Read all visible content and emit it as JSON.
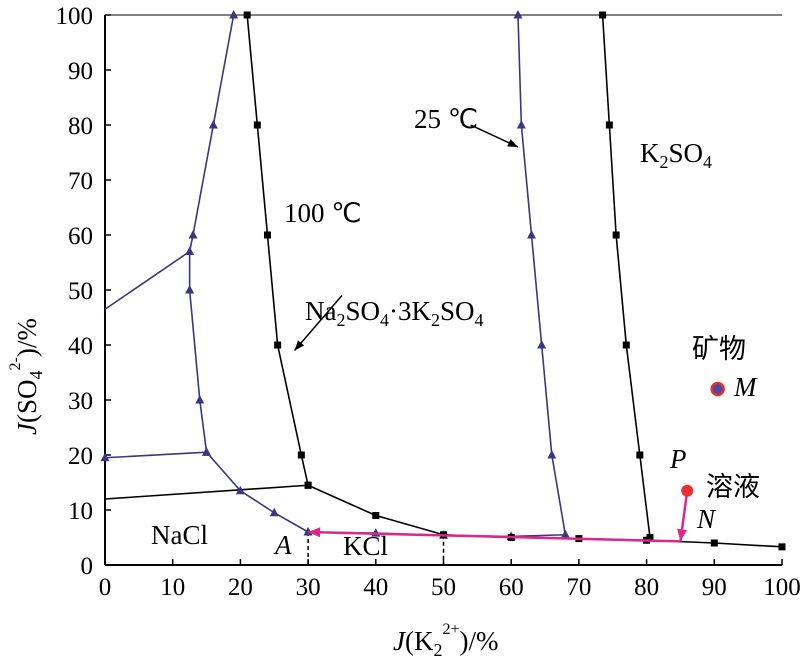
{
  "chart_data": {
    "type": "line",
    "title": "",
    "xlabel": {
      "J": "J",
      "open": "(K",
      "sub": "2",
      "sup": "2+",
      "close": ")/%"
    },
    "ylabel": {
      "J": "J",
      "open": "(SO",
      "sub": "4",
      "sup": "2-",
      "close": ")/%"
    },
    "xlim": [
      0,
      100
    ],
    "ylim": [
      0,
      100
    ],
    "x_ticks": [
      0,
      10,
      20,
      30,
      40,
      50,
      60,
      70,
      80,
      90,
      100
    ],
    "y_ticks": [
      0,
      10,
      20,
      30,
      40,
      50,
      60,
      70,
      80,
      90,
      100
    ],
    "colors": {
      "t25": "#3a3680",
      "t100": "#000000",
      "path": "#e0268b",
      "point": "#e8312c",
      "mineral_fill": "#4b4aa0"
    },
    "series": [
      {
        "id": "t25_left_boundary",
        "marker": "triangle",
        "points": [
          [
            19,
            100
          ],
          [
            16,
            80
          ],
          [
            13,
            60
          ],
          [
            12.5,
            57
          ],
          [
            12.5,
            50
          ],
          [
            14,
            30
          ],
          [
            15,
            20.5
          ]
        ]
      },
      {
        "id": "t25_top_branch",
        "marker": "none",
        "points": [
          [
            0,
            46.5
          ],
          [
            12.5,
            57
          ]
        ]
      },
      {
        "id": "t25_bottom_branch",
        "marker": "triangle",
        "points": [
          [
            0,
            19.5
          ],
          [
            15,
            20.5
          ],
          [
            20,
            13.5
          ],
          [
            25,
            9.5
          ],
          [
            30,
            6
          ]
        ]
      },
      {
        "id": "t25_right_boundary",
        "marker": "triangle",
        "points": [
          [
            61,
            100
          ],
          [
            61.5,
            80
          ],
          [
            63,
            60
          ],
          [
            64.5,
            40
          ],
          [
            66,
            20
          ],
          [
            68,
            5.5
          ]
        ]
      },
      {
        "id": "t25_base",
        "marker": "triangle",
        "points": [
          [
            30,
            6
          ],
          [
            40,
            5.8
          ],
          [
            50,
            5.4
          ],
          [
            60,
            5.2
          ],
          [
            68,
            5.5
          ]
        ]
      },
      {
        "id": "t100_left_boundary",
        "marker": "square",
        "points": [
          [
            21,
            100
          ],
          [
            22.5,
            80
          ],
          [
            24,
            60
          ],
          [
            25.5,
            40
          ],
          [
            29,
            20
          ],
          [
            30,
            14.5
          ]
        ]
      },
      {
        "id": "t100_low_branch",
        "marker": "none",
        "points": [
          [
            0,
            12
          ],
          [
            30,
            14.5
          ]
        ]
      },
      {
        "id": "t100_base",
        "marker": "square",
        "points": [
          [
            30,
            14.5
          ],
          [
            40,
            9
          ],
          [
            50,
            5.5
          ],
          [
            60,
            5
          ],
          [
            70,
            4.8
          ],
          [
            80,
            4.5
          ],
          [
            90,
            4
          ],
          [
            100,
            3.3
          ]
        ]
      },
      {
        "id": "t100_right_boundary",
        "marker": "square",
        "points": [
          [
            73.5,
            100
          ],
          [
            74.5,
            80
          ],
          [
            75.5,
            60
          ],
          [
            77,
            40
          ],
          [
            79,
            20
          ],
          [
            80.5,
            5
          ]
        ]
      },
      {
        "id": "kcl_dividers",
        "marker": "none",
        "dashed": true,
        "segments": [
          [
            [
              30,
              6
            ],
            [
              30,
              0
            ]
          ],
          [
            [
              50,
              5.5
            ],
            [
              50,
              0
            ]
          ]
        ]
      }
    ],
    "path": {
      "points": [
        [
          86,
          13.5
        ],
        [
          85,
          4.3
        ],
        [
          30,
          6
        ]
      ]
    },
    "points": [
      {
        "id": "M",
        "x": 90.5,
        "y": 32
      },
      {
        "id": "P",
        "x": 86,
        "y": 13.5
      }
    ],
    "annotations": {
      "t100": {
        "text": "100 ℃",
        "arrow_from": [
          35,
          49
        ],
        "arrow_to": [
          28,
          39
        ]
      },
      "t25": {
        "text": "25 ℃",
        "arrow_from": [
          54,
          80
        ],
        "arrow_to": [
          61,
          76
        ]
      },
      "k2so4": {
        "pre": "K",
        "sub": "2",
        "mid": "SO",
        "sub2": "4"
      },
      "glaserite": {
        "text": "Na2SO4·3K2SO4",
        "parts": [
          "Na",
          "2",
          "SO",
          "4",
          "·3K",
          "2",
          "SO",
          "4"
        ]
      },
      "mineral": "矿物",
      "M": "M",
      "P": "P",
      "solution": "溶液",
      "N": "N",
      "NaCl": "NaCl",
      "A": "A",
      "KCl": "KCl"
    }
  }
}
